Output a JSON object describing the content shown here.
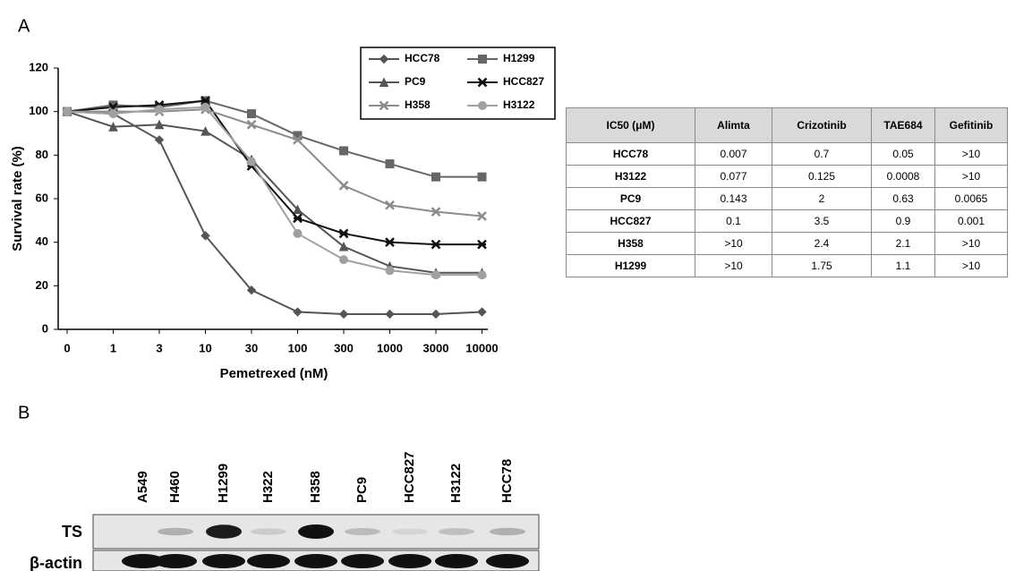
{
  "panel_labels": [
    "A",
    "B"
  ],
  "chart_data": {
    "type": "line",
    "x_label": "Pemetrexed (nM)",
    "y_label": "Survival rate (%)",
    "categories": [
      "0",
      "1",
      "3",
      "10",
      "30",
      "100",
      "300",
      "1000",
      "3000",
      "10000"
    ],
    "ylim": [
      0,
      120
    ],
    "yticks": [
      0,
      20,
      40,
      60,
      80,
      100,
      120
    ],
    "series": [
      {
        "name": "HCC78",
        "color": "#555555",
        "marker": "diamond",
        "values": [
          100,
          99,
          87,
          43,
          18,
          8,
          7,
          7,
          7,
          8
        ]
      },
      {
        "name": "H1299",
        "color": "#666666",
        "marker": "square",
        "values": [
          100,
          103,
          102,
          105,
          99,
          89,
          82,
          76,
          70,
          70
        ]
      },
      {
        "name": "PC9",
        "color": "#555555",
        "marker": "triangle",
        "values": [
          100,
          93,
          94,
          91,
          78,
          55,
          38,
          29,
          26,
          26
        ]
      },
      {
        "name": "HCC827",
        "color": "#111111",
        "marker": "star",
        "values": [
          100,
          102,
          103,
          105,
          75,
          51,
          44,
          40,
          39,
          39
        ]
      },
      {
        "name": "H358",
        "color": "#8c8c8c",
        "marker": "x",
        "values": [
          100,
          100,
          100,
          101,
          94,
          87,
          66,
          57,
          54,
          52
        ]
      },
      {
        "name": "H3122",
        "color": "#a0a0a0",
        "marker": "circle",
        "values": [
          100,
          99,
          101,
          102,
          77,
          44,
          32,
          27,
          25,
          25
        ]
      }
    ]
  },
  "table": {
    "header": [
      "IC50 (μM)",
      "Alimta",
      "Crizotinib",
      "TAE684",
      "Gefitinib"
    ],
    "rows": [
      [
        "HCC78",
        "0.007",
        "0.7",
        "0.05",
        ">10"
      ],
      [
        "H3122",
        "0.077",
        "0.125",
        "0.0008",
        ">10"
      ],
      [
        "PC9",
        "0.143",
        "2",
        "0.63",
        "0.0065"
      ],
      [
        "HCC827",
        "0.1",
        "3.5",
        "0.9",
        "0.001"
      ],
      [
        "H358",
        ">10",
        "2.4",
        "2.1",
        ">10"
      ],
      [
        "H1299",
        ">10",
        "1.75",
        "1.1",
        ">10"
      ]
    ]
  },
  "blot": {
    "lanes": [
      "A549",
      "H460",
      "H1299",
      "H322",
      "H358",
      "PC9",
      "HCC827",
      "H3122",
      "HCC78"
    ],
    "rows": [
      "TS",
      "β-actin"
    ]
  }
}
